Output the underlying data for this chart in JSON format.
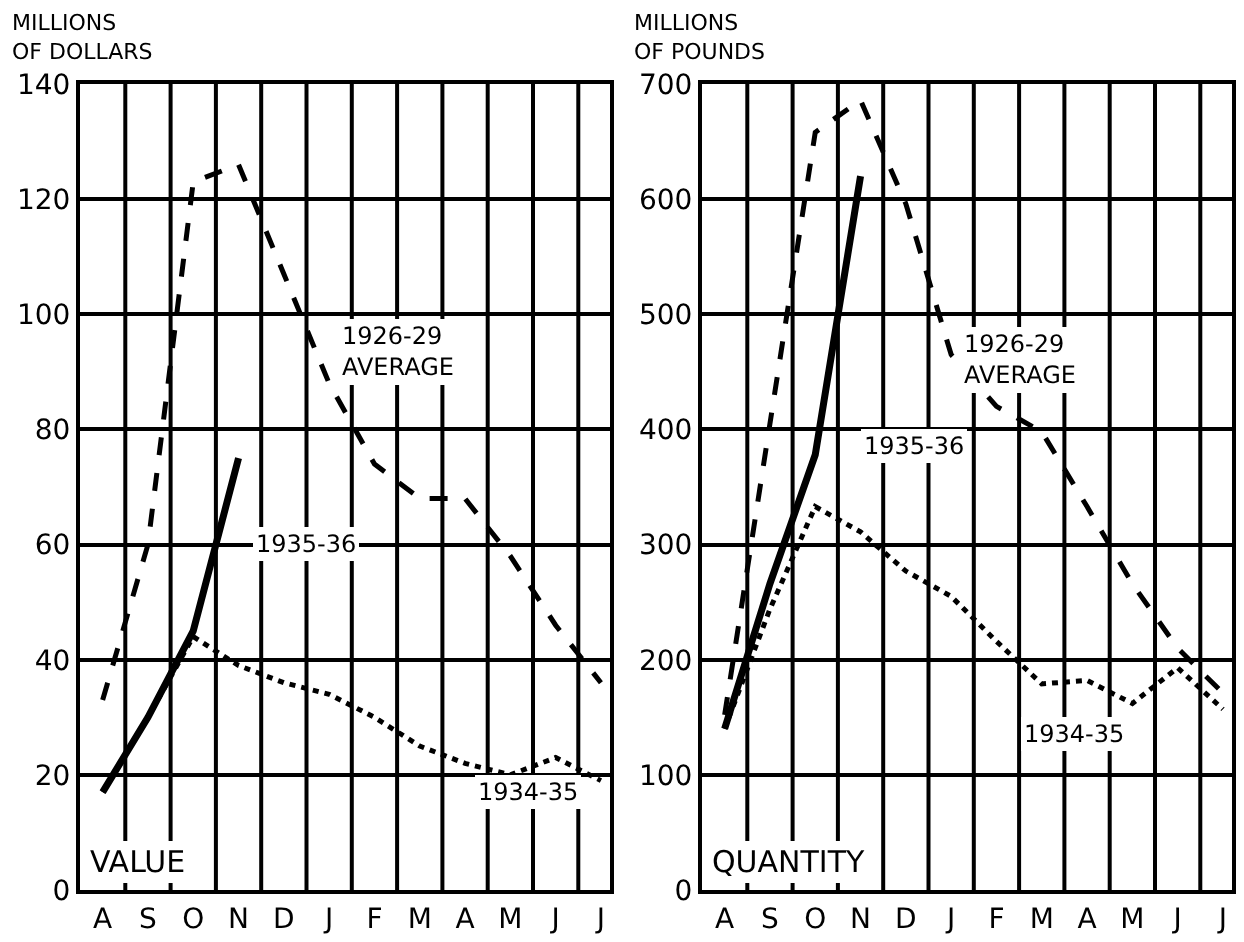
{
  "chart_data": [
    {
      "type": "line",
      "ylabel": "MILLIONS\nOF DOLLARS",
      "categories": [
        "A",
        "S",
        "O",
        "N",
        "D",
        "J",
        "F",
        "M",
        "A",
        "M",
        "J",
        "J"
      ],
      "series": [
        {
          "name": "1926-29\nAVERAGE",
          "color": "#000000",
          "line_style": "dashed",
          "values": [
            33,
            60,
            123,
            126,
            107,
            88,
            74,
            68,
            68,
            58,
            46,
            36
          ]
        },
        {
          "name": "1935-36",
          "color": "#000000",
          "line_style": "solid",
          "values": [
            17,
            30,
            45,
            75,
            null,
            null,
            null,
            null,
            null,
            null,
            null,
            null
          ]
        },
        {
          "name": "1934-35",
          "color": "#000000",
          "line_style": "dotted",
          "values": [
            17,
            30,
            44,
            39,
            36,
            34,
            30,
            25,
            22,
            20,
            23,
            19
          ]
        }
      ],
      "ylim": [
        0,
        140
      ],
      "yticks": [
        0,
        20,
        40,
        60,
        80,
        100,
        120,
        140
      ],
      "grid": true,
      "marker": "none",
      "annotations": [
        "VALUE"
      ]
    },
    {
      "type": "line",
      "ylabel": "MILLIONS\nOF POUNDS",
      "categories": [
        "A",
        "S",
        "O",
        "N",
        "D",
        "J",
        "F",
        "M",
        "A",
        "M",
        "J",
        "J"
      ],
      "series": [
        {
          "name": "1926-29\nAVERAGE",
          "color": "#000000",
          "line_style": "dashed",
          "values": [
            152,
            405,
            658,
            686,
            596,
            465,
            420,
            398,
            333,
            266,
            210,
            171
          ]
        },
        {
          "name": "1935-36",
          "color": "#000000",
          "line_style": "solid",
          "values": [
            140,
            266,
            378,
            620,
            null,
            null,
            null,
            null,
            null,
            null,
            null,
            null
          ]
        },
        {
          "name": "1934-35",
          "color": "#000000",
          "line_style": "dotted",
          "values": [
            140,
            244,
            333,
            311,
            277,
            255,
            216,
            179,
            182,
            162,
            193,
            157
          ]
        }
      ],
      "ylim": [
        0,
        700
      ],
      "yticks": [
        0,
        100,
        200,
        300,
        400,
        500,
        600,
        700
      ],
      "grid": true,
      "marker": "none",
      "annotations": [
        "QUANTITY"
      ]
    }
  ]
}
